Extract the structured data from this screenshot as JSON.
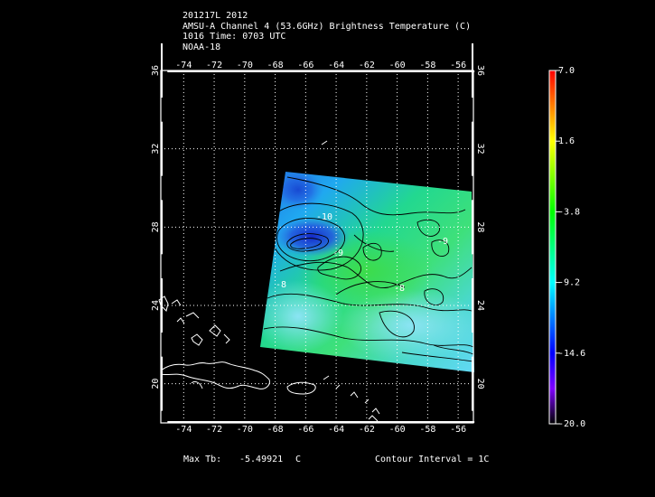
{
  "header": {
    "line1": "201217L 2012",
    "line2": "AMSU-A Channel 4 (53.6GHz) Brightness Temperature (C)",
    "line3": "1016 Time: 0703 UTC",
    "line4": "NOAA-18"
  },
  "map": {
    "lon_range": [
      -75.5,
      -55
    ],
    "lat_range": [
      18,
      36
    ],
    "lon_ticks": [
      "-74",
      "-72",
      "-70",
      "-68",
      "-66",
      "-64",
      "-62",
      "-60",
      "-58",
      "-56"
    ],
    "lat_ticks": [
      "20",
      "24",
      "28",
      "32",
      "36"
    ],
    "contour_labels": [
      "-10",
      "-9",
      "-9",
      "-8",
      "-8"
    ],
    "grid": true
  },
  "colorbar": {
    "min": -20.0,
    "max": 7.0,
    "tick_labels": [
      "7.0",
      "1.6",
      "-3.8",
      "-9.2",
      "-14.6",
      "-20.0"
    ],
    "colors": [
      "#ff0000",
      "#ffff00",
      "#00ff00",
      "#00ffff",
      "#0000ff",
      "#7f00ff",
      "#000000"
    ]
  },
  "footer": {
    "max_label": "Max Tb:",
    "max_value": "-5.49921",
    "max_unit": "C",
    "contour_interval": "Contour Interval = 1C"
  }
}
